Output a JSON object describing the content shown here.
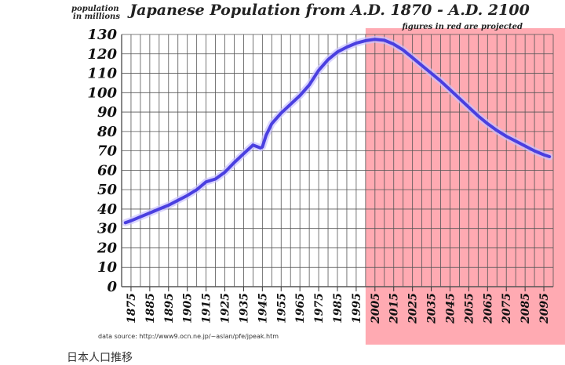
{
  "chart_data": {
    "type": "line",
    "title": "Japanese Population from A.D. 1870 - A.D. 2100",
    "ylabel": "population\nin millions",
    "note": "figures in red are projected",
    "source": "data source: http://www9.ocn.ne.jp/~aslan/pfe/jpeak.htm",
    "xlim": [
      1870,
      2100
    ],
    "ylim": [
      0,
      130
    ],
    "yticks": [
      0,
      10,
      20,
      30,
      40,
      50,
      60,
      70,
      80,
      90,
      100,
      110,
      120,
      130
    ],
    "xticks": [
      1875,
      1885,
      1895,
      1905,
      1915,
      1925,
      1935,
      1945,
      1955,
      1965,
      1975,
      1985,
      1995,
      2005,
      2015,
      2025,
      2035,
      2045,
      2055,
      2065,
      2075,
      2085,
      2095
    ],
    "projected_from": 2000,
    "grid": true,
    "colors": {
      "line": "#4a3fe0",
      "projection": "#ffaab2",
      "grid": "#555555"
    },
    "series": [
      {
        "points": [
          [
            1872,
            33
          ],
          [
            1875,
            34
          ],
          [
            1880,
            36
          ],
          [
            1885,
            38
          ],
          [
            1890,
            40
          ],
          [
            1895,
            42
          ],
          [
            1900,
            44.5
          ],
          [
            1905,
            47
          ],
          [
            1910,
            50
          ],
          [
            1915,
            54
          ],
          [
            1920,
            55.5
          ],
          [
            1925,
            59
          ],
          [
            1930,
            64
          ],
          [
            1935,
            68.5
          ],
          [
            1940,
            73
          ],
          [
            1944,
            71.5
          ],
          [
            1945,
            72
          ],
          [
            1947,
            78
          ],
          [
            1950,
            84
          ],
          [
            1955,
            89.5
          ],
          [
            1960,
            94
          ],
          [
            1965,
            98.5
          ],
          [
            1970,
            104
          ],
          [
            1975,
            111.5
          ],
          [
            1980,
            117
          ],
          [
            1985,
            121
          ],
          [
            1990,
            123.5
          ],
          [
            1995,
            125.5
          ],
          [
            2000,
            126.8
          ],
          [
            2005,
            127.5
          ],
          [
            2010,
            127
          ],
          [
            2015,
            125
          ],
          [
            2020,
            122
          ],
          [
            2025,
            118
          ],
          [
            2030,
            114
          ],
          [
            2035,
            110
          ],
          [
            2040,
            106
          ],
          [
            2045,
            101.5
          ],
          [
            2050,
            97
          ],
          [
            2055,
            92.5
          ],
          [
            2060,
            88
          ],
          [
            2065,
            84
          ],
          [
            2070,
            80.5
          ],
          [
            2075,
            77.5
          ],
          [
            2080,
            75
          ],
          [
            2085,
            72.5
          ],
          [
            2090,
            70
          ],
          [
            2095,
            68
          ],
          [
            2098,
            67
          ]
        ]
      }
    ]
  },
  "caption": "日本人口推移"
}
